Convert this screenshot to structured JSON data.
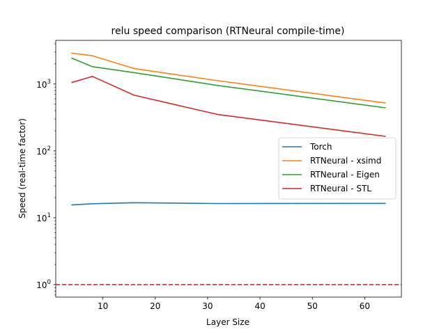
{
  "chart_data": {
    "type": "line",
    "title": "relu speed comparison (RTNeural compile-time)",
    "xlabel": "Layer Size",
    "ylabel": "Speed (real-time factor)",
    "xlim": [
      1,
      67
    ],
    "ylim": [
      0.65,
      4500
    ],
    "yscale": "log",
    "grid": false,
    "legend_placement": "center-right",
    "x_ticks": [
      10,
      20,
      30,
      40,
      50,
      60
    ],
    "y_ticks": [
      {
        "value": 1,
        "base": "10",
        "exp": "0"
      },
      {
        "value": 10,
        "base": "10",
        "exp": "1"
      },
      {
        "value": 100,
        "base": "10",
        "exp": "2"
      },
      {
        "value": 1000,
        "base": "10",
        "exp": "3"
      }
    ],
    "x": [
      4,
      8,
      16,
      32,
      64
    ],
    "series": [
      {
        "name": "Torch",
        "color": "#1f77b4",
        "values": [
          15.5,
          16.2,
          16.8,
          16.3,
          16.4
        ]
      },
      {
        "name": "RTNeural - xsimd",
        "color": "#ff7f0e",
        "values": [
          2900,
          2650,
          1700,
          1120,
          520
        ]
      },
      {
        "name": "RTNeural - Eigen",
        "color": "#2ca02c",
        "values": [
          2450,
          1820,
          1480,
          950,
          440
        ]
      },
      {
        "name": "RTNeural - STL",
        "color": "#d62728",
        "values": [
          1050,
          1300,
          680,
          350,
          165
        ]
      }
    ],
    "reference_line": {
      "y": 1,
      "color": "#d62728",
      "style": "dashed"
    }
  }
}
